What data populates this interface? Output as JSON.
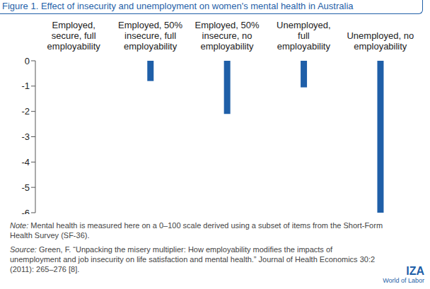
{
  "chart_data": {
    "type": "bar",
    "title": "Figure 1. Effect of insecurity and unemployment on women's mental health in Australia",
    "categories": [
      "Employed, secure, full employability",
      "Employed, 50% insecure, full employability",
      "Employed, 50% insecure, no employability",
      "Unemployed, full employability",
      "Unemployed, no employability"
    ],
    "values": [
      0,
      -0.8,
      -2.1,
      -1.05,
      -6.0
    ],
    "color": "#1f5fa8",
    "ylim": [
      -6,
      0
    ],
    "yticks": [
      -6,
      -5,
      -4,
      -3,
      -2,
      -1,
      0
    ],
    "grid": false,
    "note": "Note: Mental health is measured here on a 0–100 scale derived using a subset of items from the Short-Form Health Survey (SF-36).",
    "source": "Source: Green, F. “Unpacking the misery multiplier: How employability modifies the impacts of unemployment and job insecurity on life satisfaction and mental health.” Journal of Health Economics 30:2 (2011): 265–276 [8].",
    "logo": [
      "IZA",
      "World of Labor"
    ]
  }
}
